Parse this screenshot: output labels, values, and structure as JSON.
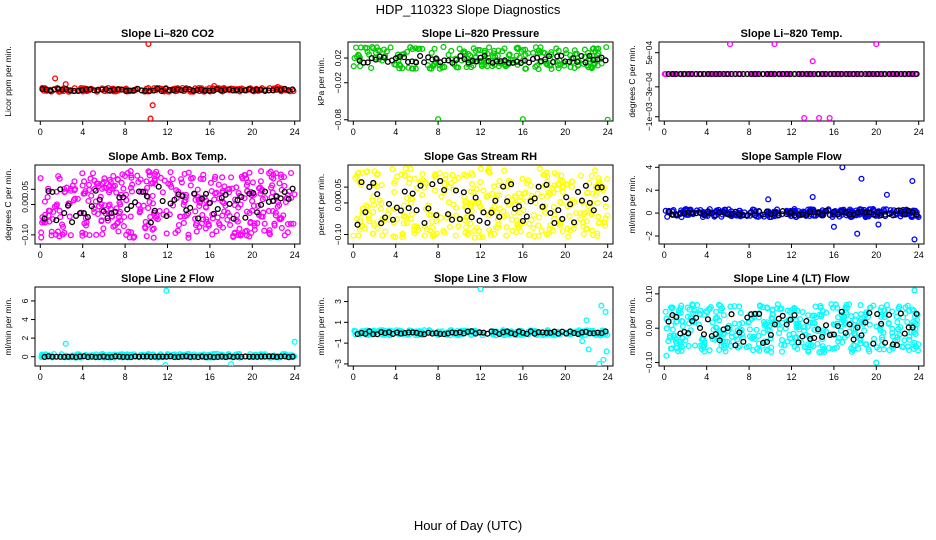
{
  "page": {
    "title": "HDP_110323  Slope Diagnostics",
    "xlabel": "Hour of Day (UTC)"
  },
  "chart_data": [
    {
      "type": "scatter",
      "title": "Slope Li–820 CO2",
      "ylabel": "Licor ppm per min.",
      "color": "#ff0000",
      "xlim": [
        -0.5,
        24.5
      ],
      "ylim": [
        -6.5,
        10
      ],
      "yticks": [],
      "xticks": [
        0,
        4,
        8,
        12,
        16,
        20,
        24
      ],
      "xtick_labels": [
        "0",
        "4",
        "8",
        "12",
        "16",
        "20",
        "24"
      ],
      "black_series": {
        "x_start": 0.2,
        "x_end": 23.8,
        "n": 64,
        "base": 0,
        "spread": 0.25
      },
      "colored_series": {
        "x_start": 0.0,
        "x_end": 24.0,
        "n": 170,
        "base": 0,
        "spread": 0.4
      },
      "outliers": [
        [
          10.2,
          9.6
        ],
        [
          10.6,
          -3.2
        ],
        [
          10.4,
          -6.0
        ],
        [
          1.4,
          2.4
        ],
        [
          2.4,
          1.2
        ],
        [
          0.2,
          0.4
        ],
        [
          16.4,
          0.8
        ],
        [
          22.4,
          0.6
        ]
      ]
    },
    {
      "type": "scatter",
      "title": "Slope Li–820 Pressure",
      "ylabel": "kPa per min.",
      "color": "#00cc00",
      "xlim": [
        -0.5,
        24.5
      ],
      "ylim": [
        -0.082,
        0.046
      ],
      "yticks": [
        -0.08,
        -0.02,
        0.02
      ],
      "ytick_labels": [
        "−0.08",
        "−0.02",
        "0.02"
      ],
      "xticks": [
        0,
        4,
        8,
        12,
        16,
        20,
        24
      ],
      "xtick_labels": [
        "0",
        "4",
        "8",
        "12",
        "16",
        "20",
        "24"
      ],
      "black_series": {
        "x_start": 0.6,
        "x_end": 23.8,
        "n": 62,
        "base": 0.018,
        "spread": 0.006
      },
      "colored_series": {
        "x_start": 0.0,
        "x_end": 24.0,
        "n": 220,
        "base": 0.02,
        "spread": 0.018
      },
      "outliers": [
        [
          8.0,
          -0.079
        ],
        [
          16.0,
          -0.079
        ],
        [
          24.0,
          -0.08
        ]
      ]
    },
    {
      "type": "scatter",
      "title": "Slope Li–820 Temp.",
      "ylabel": "degrees C per min.",
      "color": "#ff00ff",
      "xlim": [
        -0.5,
        24.5
      ],
      "ylim": [
        -0.0011,
        0.00075
      ],
      "yticks": [
        -0.001,
        -0.0003,
        0.0005
      ],
      "ytick_labels": [
        "−1e−03",
        "−3e−04",
        "5e−04"
      ],
      "xticks": [
        0,
        4,
        8,
        12,
        16,
        20,
        24
      ],
      "xtick_labels": [
        "0",
        "4",
        "8",
        "12",
        "16",
        "20",
        "24"
      ],
      "black_series": {
        "x_start": 0.4,
        "x_end": 23.8,
        "n": 64,
        "base": 0,
        "spread": 0
      },
      "colored_series": {
        "x_start": 0.0,
        "x_end": 24.0,
        "n": 150,
        "base": 0,
        "spread": 0
      },
      "outliers": [
        [
          6.2,
          0.0007
        ],
        [
          10.4,
          0.0007
        ],
        [
          20.0,
          0.0007
        ],
        [
          14.0,
          0.0003
        ],
        [
          13.2,
          -0.00103
        ],
        [
          14.6,
          -0.00103
        ],
        [
          15.6,
          -0.00103
        ]
      ]
    },
    {
      "type": "scatter",
      "title": "Slope Amb. Box Temp.",
      "ylabel": "degrees C per min.",
      "color": "#ff00ff",
      "xlim": [
        -0.5,
        24.5
      ],
      "ylim": [
        -0.13,
        0.13
      ],
      "yticks": [
        -0.1,
        0.0,
        0.05
      ],
      "ytick_labels": [
        "−0.10",
        "0.00",
        "0.05"
      ],
      "xticks": [
        0,
        4,
        8,
        12,
        16,
        20,
        24
      ],
      "xtick_labels": [
        "0",
        "4",
        "8",
        "12",
        "16",
        "20",
        "24"
      ],
      "black_series": {
        "x_start": 0.4,
        "x_end": 23.8,
        "n": 64,
        "base": 0,
        "spread": 0.06
      },
      "colored_series": {
        "x_start": 0.0,
        "x_end": 24.0,
        "n": 420,
        "base": 0,
        "spread": 0.11
      },
      "outliers": []
    },
    {
      "type": "scatter",
      "title": "Slope Gas Stream RH",
      "ylabel": "percent per min.",
      "color": "#ffff00",
      "xlim": [
        -0.5,
        24.5
      ],
      "ylim": [
        -0.13,
        0.12
      ],
      "yticks": [
        -0.1,
        0.0,
        0.05
      ],
      "ytick_labels": [
        "−0.10",
        "0.00",
        "0.05"
      ],
      "xticks": [
        0,
        4,
        8,
        12,
        16,
        20,
        24
      ],
      "xtick_labels": [
        "0",
        "4",
        "8",
        "12",
        "16",
        "20",
        "24"
      ],
      "black_series": {
        "x_start": 0.4,
        "x_end": 23.8,
        "n": 64,
        "base": 0,
        "spread": 0.07
      },
      "colored_series": {
        "x_start": 0.0,
        "x_end": 24.0,
        "n": 380,
        "base": 0,
        "spread": 0.11
      },
      "outliers": []
    },
    {
      "type": "scatter",
      "title": "Slope Sample Flow",
      "ylabel": "ml/min per min.",
      "color": "#0000ff",
      "xlim": [
        -0.5,
        24.5
      ],
      "ylim": [
        -2.7,
        4.2
      ],
      "yticks": [
        -2,
        0,
        2,
        4
      ],
      "ytick_labels": [
        "−2",
        "0",
        "2",
        "4"
      ],
      "xticks": [
        0,
        4,
        8,
        12,
        16,
        20,
        24
      ],
      "xtick_labels": [
        "0",
        "4",
        "8",
        "12",
        "16",
        "20",
        "24"
      ],
      "black_series": {
        "x_start": 0.4,
        "x_end": 23.8,
        "n": 64,
        "base": 0,
        "spread": 0.2
      },
      "colored_series": {
        "x_start": 0.0,
        "x_end": 24.0,
        "n": 300,
        "base": 0,
        "spread": 0.35
      },
      "outliers": [
        [
          16.8,
          4.0
        ],
        [
          18.6,
          3.0
        ],
        [
          23.4,
          2.8
        ],
        [
          21.0,
          1.6
        ],
        [
          16.0,
          -1.2
        ],
        [
          18.2,
          -1.8
        ],
        [
          23.6,
          -2.3
        ],
        [
          14.0,
          1.4
        ],
        [
          20.2,
          -1.0
        ],
        [
          9.8,
          1.2
        ]
      ]
    },
    {
      "type": "scatter",
      "title": "Slope Line 2 Flow",
      "ylabel": "ml/min per min.",
      "color": "#00ffff",
      "xlim": [
        -0.5,
        24.5
      ],
      "ylim": [
        -1.0,
        7.5
      ],
      "yticks": [
        0,
        2,
        4,
        6
      ],
      "ytick_labels": [
        "0",
        "2",
        "4",
        "6"
      ],
      "xticks": [
        0,
        4,
        8,
        12,
        16,
        20,
        24
      ],
      "xtick_labels": [
        "0",
        "4",
        "8",
        "12",
        "16",
        "20",
        "24"
      ],
      "black_series": {
        "x_start": 0.4,
        "x_end": 23.8,
        "n": 64,
        "base": 0,
        "spread": 0.05
      },
      "colored_series": {
        "x_start": 0.0,
        "x_end": 24.0,
        "n": 260,
        "base": 0.1,
        "spread": 0.2
      },
      "outliers": [
        [
          11.9,
          7.1
        ],
        [
          24.0,
          1.6
        ],
        [
          2.4,
          1.4
        ],
        [
          11.8,
          -0.9
        ],
        [
          18.0,
          -0.8
        ]
      ]
    },
    {
      "type": "scatter",
      "title": "Slope Line 3 Flow",
      "ylabel": "ml/min per min.",
      "color": "#00ffff",
      "xlim": [
        -0.5,
        24.5
      ],
      "ylim": [
        -3.2,
        4.4
      ],
      "yticks": [
        -3,
        -1,
        1,
        3
      ],
      "ytick_labels": [
        "−3",
        "−1",
        "1",
        "3"
      ],
      "xticks": [
        0,
        4,
        8,
        12,
        16,
        20,
        24
      ],
      "xtick_labels": [
        "0",
        "4",
        "8",
        "12",
        "16",
        "20",
        "24"
      ],
      "black_series": {
        "x_start": 0.4,
        "x_end": 23.8,
        "n": 64,
        "base": 0,
        "spread": 0.15
      },
      "colored_series": {
        "x_start": 0.0,
        "x_end": 24.0,
        "n": 240,
        "base": 0,
        "spread": 0.25
      },
      "outliers": [
        [
          12.0,
          4.2
        ],
        [
          23.4,
          2.6
        ],
        [
          23.8,
          2.0
        ],
        [
          23.6,
          -2.6
        ],
        [
          23.2,
          -3.0
        ],
        [
          22.2,
          -1.6
        ],
        [
          22.0,
          1.2
        ],
        [
          21.6,
          -0.8
        ],
        [
          23.9,
          -1.8
        ]
      ]
    },
    {
      "type": "scatter",
      "title": "Slope Line 4 (LT) Flow",
      "ylabel": "ml/min per min.",
      "color": "#00ffff",
      "xlim": [
        -0.5,
        24.5
      ],
      "ylim": [
        -0.11,
        0.12
      ],
      "yticks": [
        -0.1,
        0.0,
        0.1
      ],
      "ytick_labels": [
        "−0.10",
        "0.00",
        "0.10"
      ],
      "xticks": [
        0,
        4,
        8,
        12,
        16,
        20,
        24
      ],
      "xtick_labels": [
        "0",
        "4",
        "8",
        "12",
        "16",
        "20",
        "24"
      ],
      "black_series": {
        "x_start": 0.4,
        "x_end": 23.8,
        "n": 64,
        "base": 0,
        "spread": 0.05
      },
      "colored_series": {
        "x_start": 0.0,
        "x_end": 24.0,
        "n": 420,
        "base": 0,
        "spread": 0.07
      },
      "outliers": [
        [
          23.6,
          0.11
        ],
        [
          20.0,
          -0.1
        ],
        [
          0.2,
          -0.08
        ]
      ]
    }
  ]
}
